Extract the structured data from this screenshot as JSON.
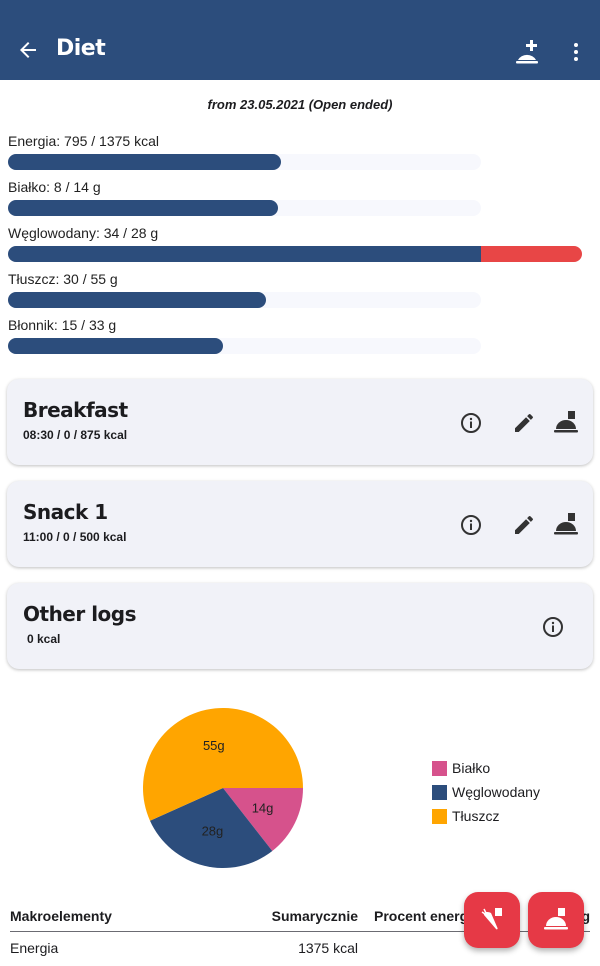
{
  "appbar": {
    "title": "Diet",
    "icons": [
      "arrow-back-icon",
      "add-meal-icon",
      "more-vert-icon"
    ]
  },
  "subtitle": "from 23.05.2021 (Open ended)",
  "goals": [
    {
      "label": "Energia: 795 / 1375 kcal",
      "value": 795,
      "target": 1375
    },
    {
      "label": "Białko: 8 / 14 g",
      "value": 8,
      "target": 14
    },
    {
      "label": "Węglowodany: 34 / 28 g",
      "value": 34,
      "target": 28
    },
    {
      "label": "Tłuszcz: 30 / 55 g",
      "value": 30,
      "target": 55
    },
    {
      "label": "Błonnik: 15 / 33 g",
      "value": 15,
      "target": 33
    }
  ],
  "meals": [
    {
      "title": "Breakfast",
      "subtitle": "08:30 /  0 / 875 kcal"
    },
    {
      "title": "Snack 1",
      "subtitle": "11:00 /  0 / 500 kcal"
    }
  ],
  "other_logs": {
    "title": "Other logs",
    "subtitle": "0 kcal"
  },
  "colors": {
    "primary": "#2c4d7c",
    "over": "#e84646",
    "fab": "#e63946",
    "protein": "#d6528c",
    "carbs": "#2c4d7c",
    "fat": "#ffa500"
  },
  "chart_data": {
    "type": "pie",
    "series": [
      {
        "name": "Białko",
        "value": 14,
        "label": "14g",
        "color": "#d6528c"
      },
      {
        "name": "Węglowodany",
        "value": 28,
        "label": "28g",
        "color": "#2c4d7c"
      },
      {
        "name": "Tłuszcz",
        "value": 55,
        "label": "55g",
        "color": "#ffa500"
      }
    ],
    "legend": "right"
  },
  "table": {
    "headers": [
      "Makroelementy",
      "Sumarycznie",
      "Procent energii",
      "g"
    ],
    "rows": [
      [
        "Energia",
        "1375 kcal"
      ]
    ]
  }
}
